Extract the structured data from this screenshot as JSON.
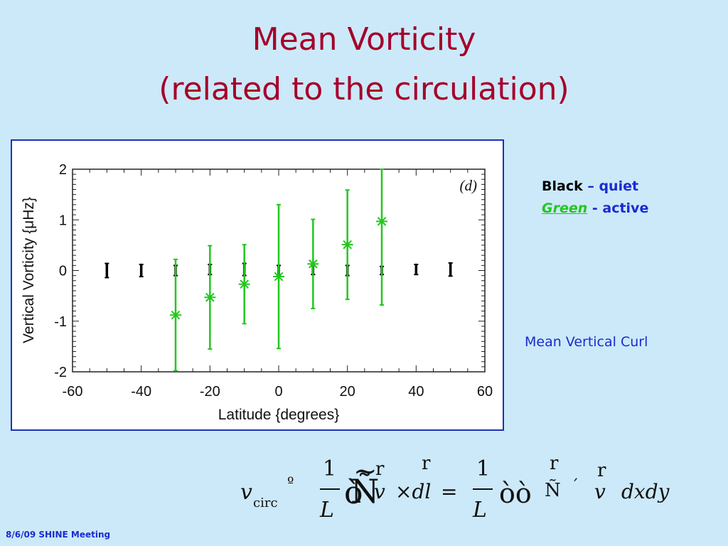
{
  "slide": {
    "title_line1": "Mean Vorticity",
    "title_line2": "(related to the circulation)",
    "footer": "8/6/09 SHINE Meeting",
    "side_note": "Mean Vertical Curl"
  },
  "legend": {
    "black_label": "Black",
    "black_desc": " – quiet",
    "green_label": "Green",
    "green_desc": " - active"
  },
  "formula": {
    "v_symbol": "v",
    "v_subscript": "circ",
    "equiv_glyph": "º",
    "one_left": "1",
    "L_left": "L",
    "contour_glyph": "Ñ",
    "contour_tilde": "~",
    "contour_prefix": "ò",
    "r_vec1": "r",
    "v1": "v",
    "dot_dl": "×dl",
    "r_vec2": "r",
    "equals": "=",
    "one_right": "1",
    "L_right": "L",
    "double_integral": "òò",
    "nabla": "Ñ",
    "cross": "´",
    "r_vec3": "r",
    "v2": "v",
    "r_vec4": "r",
    "dxdy": "dxdy"
  },
  "colors": {
    "background": "#cce9f9",
    "title": "#a5002a",
    "frame_border": "#1a33b5",
    "quiet": "#000000",
    "active": "#22c71e",
    "text_blue": "#1a2bd0"
  },
  "chart_data": {
    "type": "scatter",
    "xlabel": "Latitude {degrees}",
    "ylabel": "Vertical Vorticity {μHz}",
    "annotation": "(d)",
    "xlim": [
      -60,
      60
    ],
    "ylim": [
      -2,
      2
    ],
    "x_ticks": [
      -60,
      -40,
      -20,
      0,
      20,
      40,
      60
    ],
    "y_ticks": [
      -2,
      -1,
      0,
      1,
      2
    ],
    "grid": false,
    "series": [
      {
        "name": "quiet",
        "color": "#000000",
        "marker": "errorbar",
        "x": [
          -50,
          -40,
          -30,
          -20,
          -10,
          0,
          10,
          20,
          30,
          40,
          50
        ],
        "y": [
          0.0,
          0.0,
          0.0,
          0.02,
          0.02,
          0.0,
          0.02,
          0.0,
          0.0,
          0.02,
          0.02
        ],
        "err": [
          0.14,
          0.12,
          0.1,
          0.1,
          0.12,
          0.1,
          0.1,
          0.1,
          0.08,
          0.1,
          0.13
        ]
      },
      {
        "name": "active",
        "color": "#22c71e",
        "marker": "asterisk",
        "x": [
          -30,
          -20,
          -10,
          0,
          10,
          20,
          30
        ],
        "y": [
          -0.88,
          -0.53,
          -0.27,
          -0.12,
          0.13,
          0.51,
          0.97
        ],
        "err": [
          1.1,
          1.02,
          0.78,
          1.42,
          0.88,
          1.08,
          1.65
        ]
      }
    ]
  }
}
